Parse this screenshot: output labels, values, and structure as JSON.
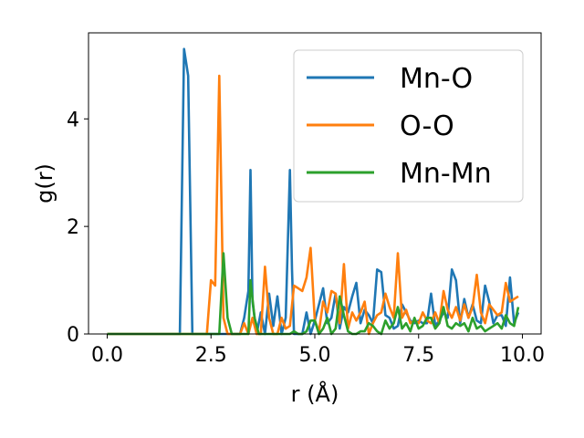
{
  "chart_data": {
    "type": "line",
    "xlabel": "r (Å)",
    "ylabel": "g(r)",
    "xlim": [
      -0.45,
      10.45
    ],
    "ylim": [
      0,
      5.6
    ],
    "xticks": [
      "0.0",
      "2.5",
      "5.0",
      "7.5",
      "10.0"
    ],
    "yticks": [
      "0",
      "2",
      "4"
    ],
    "grid": false,
    "legend_position": "top-right",
    "series": [
      {
        "name": "Mn-O",
        "color": "#1f77b4",
        "x": [
          0.0,
          1.7,
          1.75,
          1.85,
          1.95,
          2.05,
          2.1,
          3.2,
          3.3,
          3.4,
          3.45,
          3.5,
          3.6,
          3.7,
          3.8,
          3.9,
          4.0,
          4.1,
          4.2,
          4.3,
          4.4,
          4.45,
          4.5,
          4.6,
          4.7,
          4.8,
          4.9,
          5.0,
          5.1,
          5.2,
          5.3,
          5.4,
          5.5,
          5.6,
          5.7,
          5.8,
          5.9,
          6.0,
          6.1,
          6.2,
          6.3,
          6.4,
          6.5,
          6.6,
          6.7,
          6.8,
          6.9,
          7.0,
          7.1,
          7.2,
          7.3,
          7.4,
          7.5,
          7.6,
          7.7,
          7.8,
          7.9,
          8.0,
          8.1,
          8.2,
          8.3,
          8.4,
          8.5,
          8.6,
          8.7,
          8.8,
          8.9,
          9.0,
          9.1,
          9.2,
          9.3,
          9.4,
          9.5,
          9.6,
          9.7,
          9.8,
          9.9
        ],
        "y": [
          0,
          0,
          0,
          5.3,
          4.8,
          0,
          0,
          0,
          0.3,
          0.8,
          3.05,
          0.6,
          0,
          0.4,
          0,
          0.75,
          0.15,
          0.7,
          0,
          0.3,
          3.05,
          1.2,
          0,
          0,
          0,
          0.4,
          0,
          0.25,
          0.55,
          0.85,
          0.2,
          0.3,
          0.75,
          0.1,
          0.5,
          0.4,
          0.7,
          0.95,
          0.2,
          0.45,
          0.35,
          0.2,
          1.2,
          1.15,
          0.35,
          0.3,
          0.1,
          0.15,
          0.55,
          0.4,
          0.25,
          0.2,
          0.25,
          0.2,
          0.2,
          0.75,
          0.15,
          0.25,
          0.4,
          0.3,
          1.2,
          1.0,
          0.2,
          0.65,
          0.3,
          0.55,
          0.25,
          0.2,
          0.9,
          0.6,
          0.2,
          0.35,
          0.35,
          0.15,
          1.05,
          0.2,
          0.4
        ]
      },
      {
        "name": "O-O",
        "color": "#ff7f0e",
        "x": [
          0.0,
          2.3,
          2.4,
          2.5,
          2.6,
          2.7,
          2.8,
          2.9,
          3.0,
          3.1,
          3.2,
          3.3,
          3.4,
          3.5,
          3.6,
          3.7,
          3.8,
          3.9,
          4.0,
          4.1,
          4.2,
          4.3,
          4.4,
          4.5,
          4.6,
          4.7,
          4.8,
          4.9,
          5.0,
          5.1,
          5.2,
          5.3,
          5.4,
          5.5,
          5.6,
          5.7,
          5.8,
          5.9,
          6.0,
          6.1,
          6.2,
          6.3,
          6.4,
          6.5,
          6.6,
          6.7,
          6.8,
          6.9,
          7.0,
          7.1,
          7.2,
          7.3,
          7.4,
          7.5,
          7.6,
          7.7,
          7.8,
          7.9,
          8.0,
          8.1,
          8.2,
          8.3,
          8.4,
          8.5,
          8.6,
          8.7,
          8.8,
          8.9,
          9.0,
          9.1,
          9.2,
          9.3,
          9.4,
          9.5,
          9.6,
          9.7,
          9.8,
          9.9
        ],
        "y": [
          0,
          0,
          0,
          1.0,
          0.9,
          4.8,
          0.3,
          0,
          0,
          0,
          0,
          0.2,
          0,
          0.3,
          0,
          0,
          1.25,
          0.3,
          0,
          0,
          0.3,
          0.1,
          0.15,
          0.9,
          0.85,
          0.8,
          1.05,
          1.6,
          0.25,
          0.05,
          0.6,
          0.4,
          0.8,
          0.75,
          0.2,
          1.3,
          0.1,
          0.4,
          0.25,
          0.4,
          0.6,
          0,
          0.2,
          0.35,
          0.4,
          0.75,
          0.5,
          0.3,
          1.5,
          0.3,
          0.45,
          0.2,
          0.25,
          0.2,
          0.4,
          0.25,
          0.2,
          0.4,
          0.2,
          0.8,
          0.45,
          0.3,
          0.5,
          0.25,
          0.55,
          0.3,
          0.5,
          1.1,
          0.4,
          0.2,
          0.55,
          0.45,
          0.35,
          0.4,
          0.95,
          0.6,
          0.65,
          0.7
        ]
      },
      {
        "name": "Mn-Mn",
        "color": "#2ca02c",
        "x": [
          0.0,
          2.6,
          2.7,
          2.8,
          2.9,
          3.0,
          3.4,
          3.45,
          3.55,
          3.65,
          3.8,
          4.0,
          4.4,
          4.5,
          4.6,
          4.7,
          4.8,
          4.9,
          5.0,
          5.1,
          5.2,
          5.3,
          5.4,
          5.5,
          5.6,
          5.7,
          5.8,
          5.9,
          6.0,
          6.1,
          6.2,
          6.3,
          6.4,
          6.5,
          6.6,
          6.7,
          6.8,
          6.9,
          7.0,
          7.1,
          7.2,
          7.3,
          7.4,
          7.5,
          7.6,
          7.7,
          7.8,
          7.9,
          8.0,
          8.1,
          8.2,
          8.3,
          8.4,
          8.5,
          8.6,
          8.7,
          8.8,
          8.9,
          9.0,
          9.1,
          9.2,
          9.3,
          9.4,
          9.5,
          9.6,
          9.7,
          9.8,
          9.9
        ],
        "y": [
          0,
          0,
          0,
          1.5,
          0.3,
          0,
          0,
          1.0,
          0.3,
          0,
          0,
          0,
          0,
          0.05,
          0,
          0,
          0.05,
          0.25,
          0.25,
          0,
          0.1,
          0.3,
          0,
          0.1,
          0.7,
          0.35,
          0.05,
          0,
          0,
          0.05,
          0.05,
          0.2,
          0.15,
          0.05,
          0,
          0.25,
          0.1,
          0.2,
          0.5,
          0.1,
          0.2,
          0.05,
          0.3,
          0.1,
          0.15,
          0.3,
          0.3,
          0.1,
          0.2,
          0.5,
          0.15,
          0.1,
          0.2,
          0.15,
          0.2,
          0.05,
          0.3,
          0.1,
          0.15,
          0.05,
          0.1,
          0.15,
          0.2,
          0.1,
          0.35,
          0.2,
          0.15,
          0.5
        ]
      }
    ]
  }
}
